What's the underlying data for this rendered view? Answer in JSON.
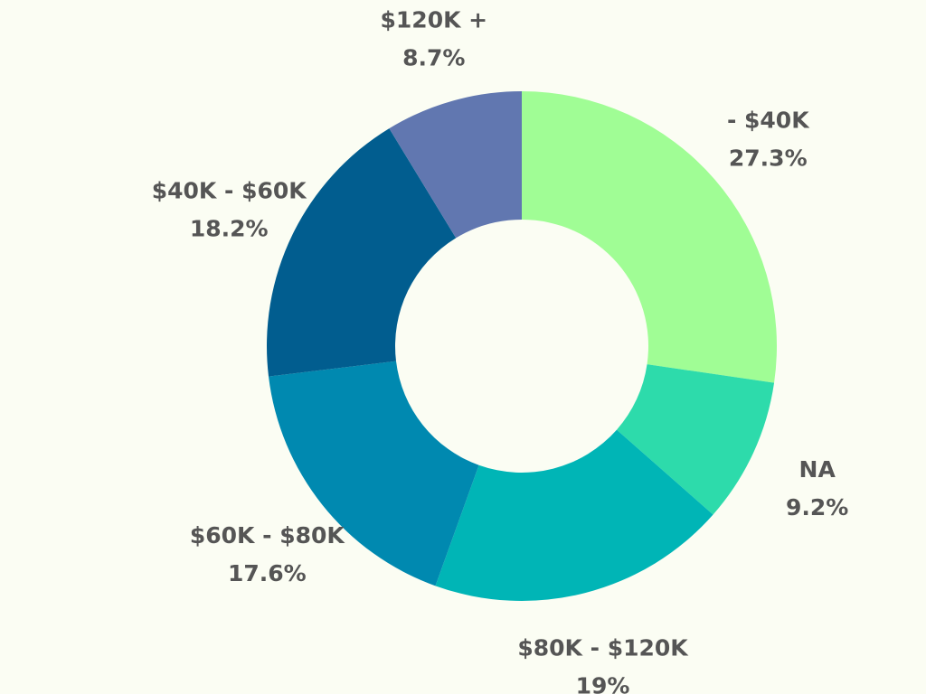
{
  "chart_data": {
    "type": "pie",
    "donut": true,
    "title": "",
    "legend": "none",
    "background": "#fbfdf3",
    "label_color": "#555555",
    "slices": [
      {
        "label": "- $40K",
        "value": 27.3,
        "display": "27.3%",
        "color": "#a0fd95"
      },
      {
        "label": "NA",
        "value": 9.2,
        "display": "9.2%",
        "color": "#2ddbab"
      },
      {
        "label": "$80K - $120K",
        "value": 19,
        "display": "19%",
        "color": "#00b5b6"
      },
      {
        "label": "$60K - $80K",
        "value": 17.6,
        "display": "17.6%",
        "color": "#0089b0"
      },
      {
        "label": "$40K - $60K",
        "value": 18.2,
        "display": "18.2%",
        "color": "#015d8f"
      },
      {
        "label": "$120K +",
        "value": 8.7,
        "display": "8.7%",
        "color": "#6177b0"
      }
    ]
  }
}
